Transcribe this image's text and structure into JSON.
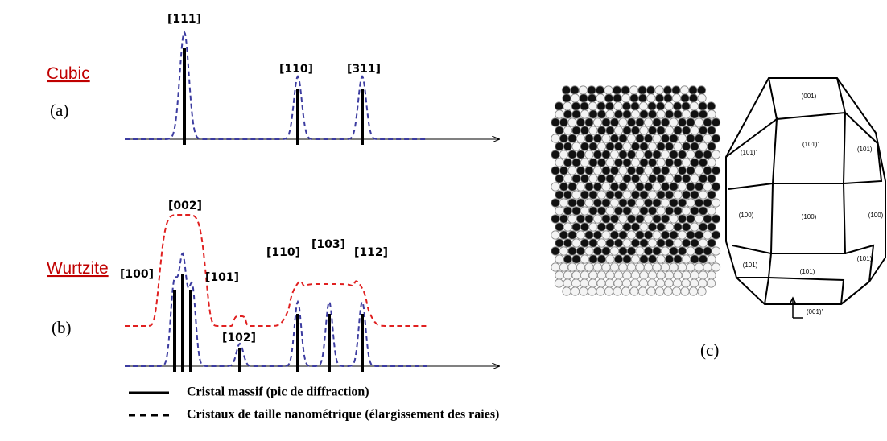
{
  "panel_a": {
    "structure": "Cubic",
    "letter": "(a)",
    "peaks": [
      "[111]",
      "[110]",
      "[311]"
    ]
  },
  "panel_b": {
    "structure": "Wurtzite",
    "letter": "(b)",
    "peaks": [
      "[002]",
      "[100]",
      "[101]",
      "[102]",
      "[110]",
      "[103]",
      "[112]"
    ]
  },
  "panel_c": {
    "letter": "(c)",
    "facets": [
      "(001)",
      "(101)'",
      "(101)'",
      "(101)'",
      "(100)",
      "(100)",
      "(100)",
      "(101)",
      "(101)",
      "(101)",
      "(001)'"
    ]
  },
  "legend": [
    "Cristal massif (pic de diffraction)",
    "Cristaux de taille nanométrique (élargissement des raies)"
  ]
}
